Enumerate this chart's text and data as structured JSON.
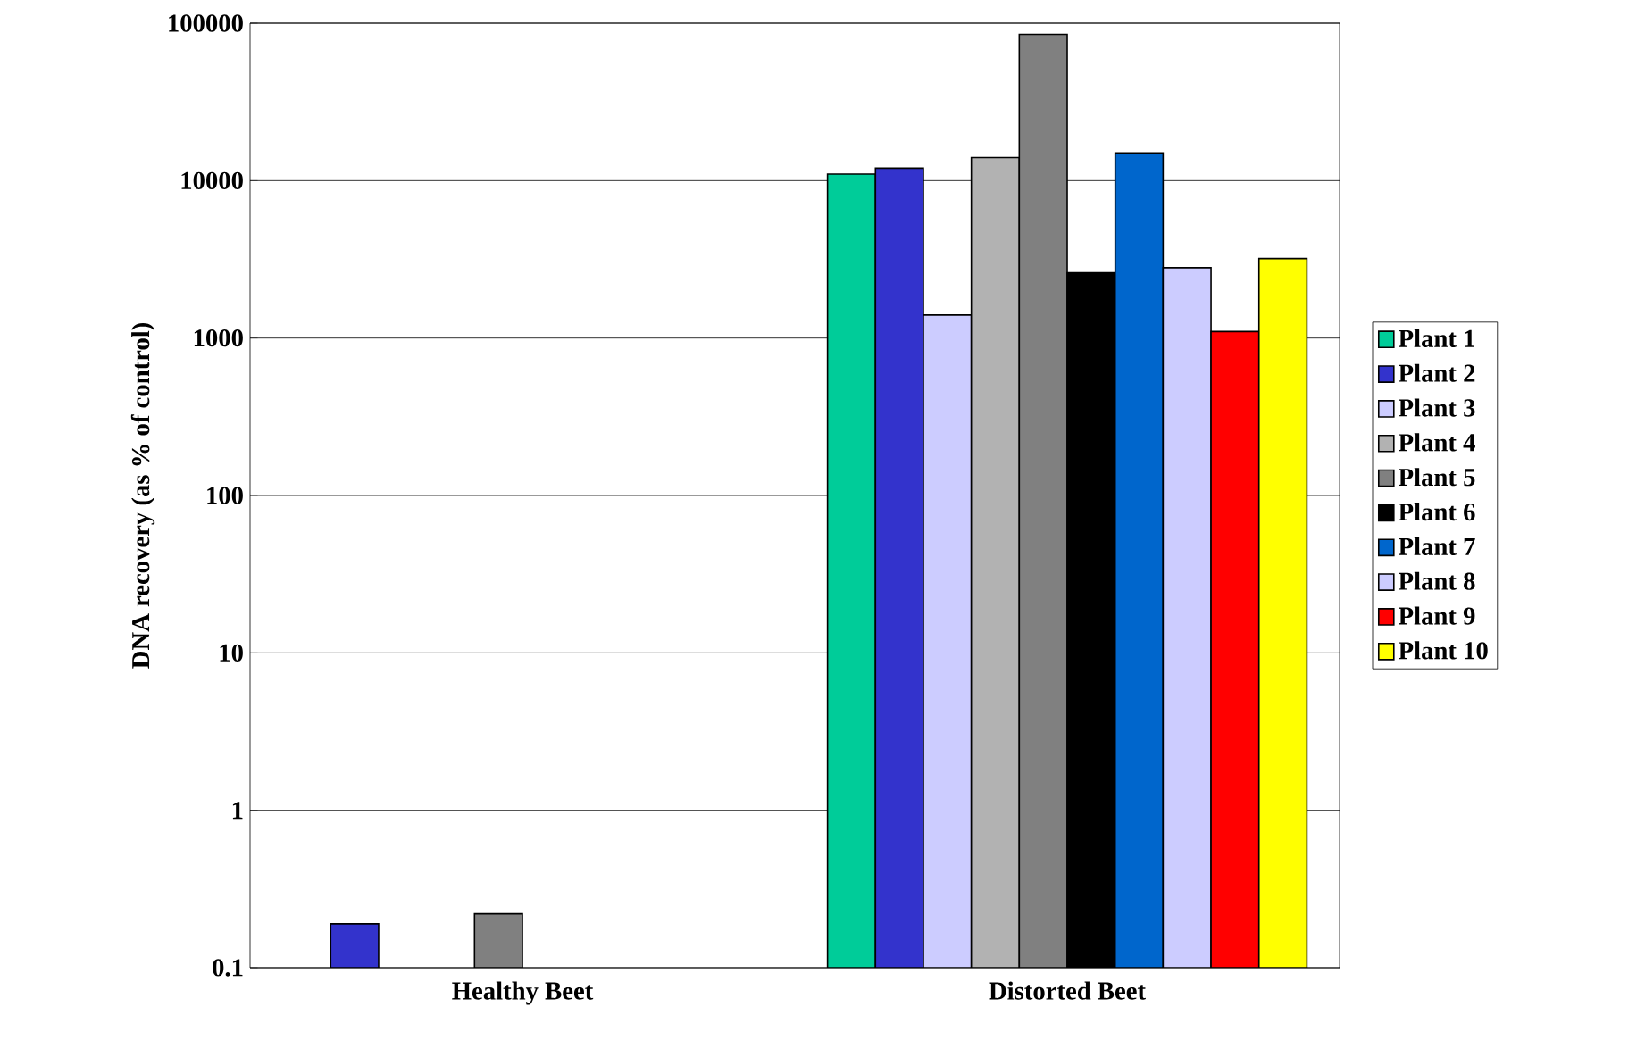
{
  "chart_data": {
    "type": "bar",
    "ylabel": "DNA recovery (as % of control)",
    "categories": [
      "Healthy Beet",
      "Distorted Beet"
    ],
    "log": "y",
    "ylim": [
      0.1,
      100000
    ],
    "yticks": [
      0.1,
      1,
      10,
      100,
      1000,
      10000,
      100000
    ],
    "grid": "y",
    "legend": "right",
    "series": [
      {
        "name": "Plant 1",
        "color": "#00cc99",
        "values": [
          null,
          11000
        ]
      },
      {
        "name": "Plant 2",
        "color": "#3333cc",
        "values": [
          0.19,
          12000
        ]
      },
      {
        "name": "Plant 3",
        "color": "#ccccff",
        "values": [
          null,
          1400
        ]
      },
      {
        "name": "Plant 4",
        "color": "#b2b2b2",
        "values": [
          null,
          14000
        ]
      },
      {
        "name": "Plant 5",
        "color": "#808080",
        "values": [
          0.22,
          85000
        ]
      },
      {
        "name": "Plant 6",
        "color": "#000000",
        "values": [
          null,
          2600
        ]
      },
      {
        "name": "Plant 7",
        "color": "#0066cc",
        "values": [
          null,
          15000
        ]
      },
      {
        "name": "Plant 8",
        "color": "#ccccff",
        "values": [
          null,
          2800
        ]
      },
      {
        "name": "Plant 9",
        "color": "#ff0000",
        "values": [
          null,
          1100
        ]
      },
      {
        "name": "Plant 10",
        "color": "#ffff00",
        "values": [
          null,
          3200
        ]
      }
    ]
  }
}
